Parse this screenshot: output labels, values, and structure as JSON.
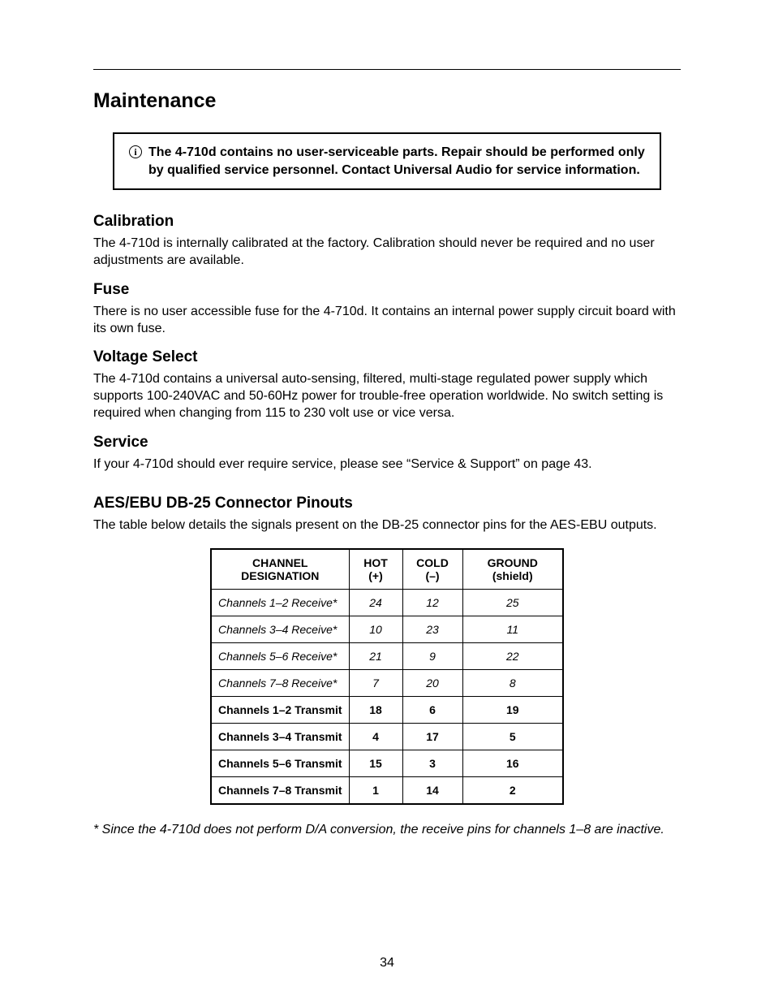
{
  "page_number": "34",
  "title": "Maintenance",
  "notice": {
    "icon_label": "i",
    "text": "The 4-710d contains no user-serviceable parts. Repair should be performed only by qualified service personnel. Contact Universal Audio for service information."
  },
  "sections": {
    "calibration": {
      "heading": "Calibration",
      "body": "The 4-710d is internally calibrated at the factory. Calibration should never be required and no user adjustments are available."
    },
    "fuse": {
      "heading": "Fuse",
      "body": "There is no user accessible fuse for the 4-710d. It contains an internal power supply circuit board with its own fuse."
    },
    "voltage": {
      "heading": "Voltage Select",
      "body": "The 4-710d contains a universal auto-sensing, filtered, multi-stage regulated power supply which supports 100-240VAC and 50-60Hz power for trouble-free operation worldwide. No switch setting is required when changing from 115 to 230 volt use or vice versa."
    },
    "service": {
      "heading": "Service",
      "body": "If your 4-710d should ever require service, please see “Service & Support” on page 43."
    },
    "pinouts": {
      "heading": "AES/EBU DB-25 Connector Pinouts",
      "intro": "The table below details the signals present on the DB-25 connector pins for the AES-EBU outputs.",
      "footnote": "* Since the 4-710d does not perform D/A conversion, the receive pins for channels 1–8 are inactive."
    }
  },
  "pinout_table": {
    "columns": [
      "CHANNEL DESIGNATION",
      "HOT (+)",
      "COLD (–)",
      "GROUND (shield)"
    ],
    "rows": [
      {
        "style": "receive",
        "cells": [
          "Channels 1–2 Receive*",
          "24",
          "12",
          "25"
        ]
      },
      {
        "style": "receive",
        "cells": [
          "Channels 3–4 Receive*",
          "10",
          "23",
          "11"
        ]
      },
      {
        "style": "receive",
        "cells": [
          "Channels 5–6 Receive*",
          "21",
          "9",
          "22"
        ]
      },
      {
        "style": "receive",
        "cells": [
          "Channels 7–8 Receive*",
          "7",
          "20",
          "8"
        ]
      },
      {
        "style": "transmit",
        "cells": [
          "Channels 1–2 Transmit",
          "18",
          "6",
          "19"
        ]
      },
      {
        "style": "transmit",
        "cells": [
          "Channels 3–4 Transmit",
          "4",
          "17",
          "5"
        ]
      },
      {
        "style": "transmit",
        "cells": [
          "Channels 5–6 Transmit",
          "15",
          "3",
          "16"
        ]
      },
      {
        "style": "transmit",
        "cells": [
          "Channels 7–8 Transmit",
          "1",
          "14",
          "2"
        ]
      }
    ]
  }
}
